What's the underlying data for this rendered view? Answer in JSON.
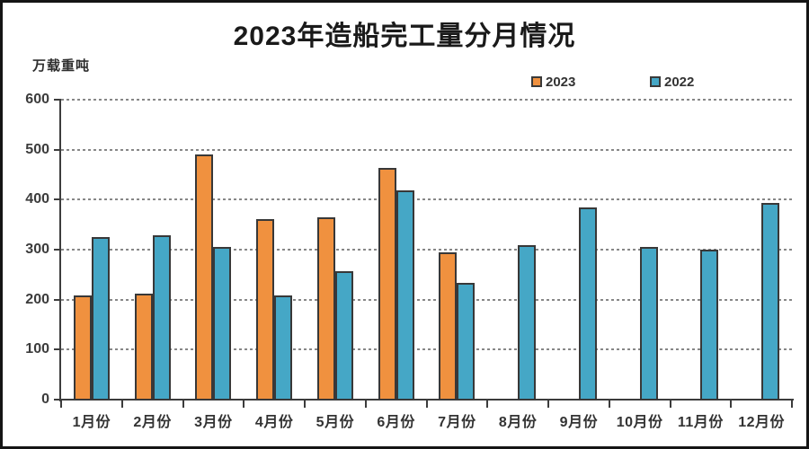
{
  "chart_data": {
    "type": "bar",
    "title": "2023年造船完工量分月情况",
    "unit_label": "万载重吨",
    "categories": [
      "1月份",
      "2月份",
      "3月份",
      "4月份",
      "5月份",
      "6月份",
      "7月份",
      "8月份",
      "9月份",
      "10月份",
      "11月份",
      "12月份"
    ],
    "series": [
      {
        "name": "2023",
        "color": "#F0913F",
        "values": [
          211,
          214,
          492,
          363,
          367,
          466,
          296,
          null,
          null,
          null,
          null,
          null
        ]
      },
      {
        "name": "2022",
        "color": "#45A7C6",
        "values": [
          327,
          330,
          307,
          211,
          258,
          421,
          235,
          310,
          387,
          307,
          302,
          396
        ]
      }
    ],
    "ylim": [
      0,
      600
    ],
    "yticks": [
      600,
      500,
      400,
      300,
      200,
      100,
      0
    ],
    "grid": "horizontal-dashed",
    "legend_position": "top-right-inside",
    "colors": {
      "bar_border": "#383838",
      "axis": "#3c3c3c",
      "gridline": "#878787",
      "background": "#ffffff",
      "frame_border": "#151515"
    }
  }
}
